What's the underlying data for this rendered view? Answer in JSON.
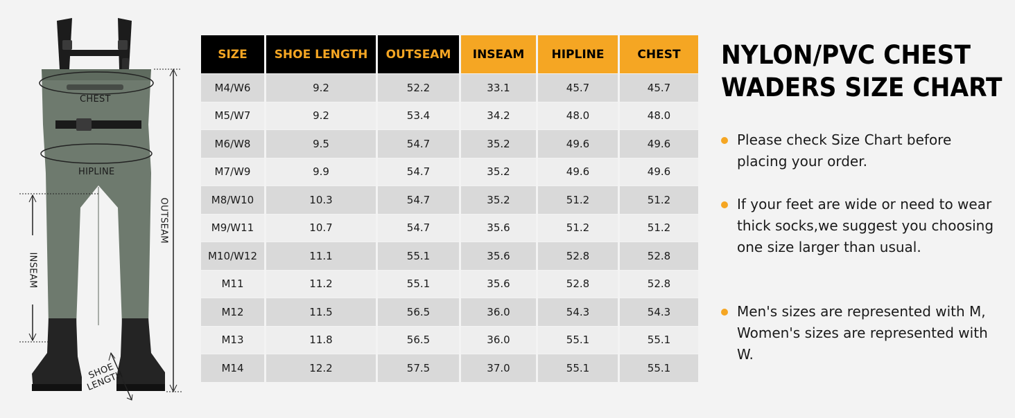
{
  "illustration": {
    "labels": {
      "chest": "CHEST",
      "hipline": "HIPLINE",
      "outseam": "OUTSEAM",
      "inseam": "INSEAM",
      "shoe_length_line1": "SHOE",
      "shoe_length_line2": "LENGTH"
    },
    "colors": {
      "waders": "#6e7a6e",
      "boots": "#242424"
    }
  },
  "table": {
    "headers": {
      "size": "SIZE",
      "shoe_length": "SHOE LENGTH",
      "outseam": "OUTSEAM",
      "inseam": "INSEAM",
      "hipline": "HIPLINE",
      "chest": "CHEST"
    },
    "rows": [
      {
        "size": "M4/W6",
        "shoe_length": "9.2",
        "outseam": "52.2",
        "inseam": "33.1",
        "hipline": "45.7",
        "chest": "45.7"
      },
      {
        "size": "M5/W7",
        "shoe_length": "9.2",
        "outseam": "53.4",
        "inseam": "34.2",
        "hipline": "48.0",
        "chest": "48.0"
      },
      {
        "size": "M6/W8",
        "shoe_length": "9.5",
        "outseam": "54.7",
        "inseam": "35.2",
        "hipline": "49.6",
        "chest": "49.6"
      },
      {
        "size": "M7/W9",
        "shoe_length": "9.9",
        "outseam": "54.7",
        "inseam": "35.2",
        "hipline": "49.6",
        "chest": "49.6"
      },
      {
        "size": "M8/W10",
        "shoe_length": "10.3",
        "outseam": "54.7",
        "inseam": "35.2",
        "hipline": "51.2",
        "chest": "51.2"
      },
      {
        "size": "M9/W11",
        "shoe_length": "10.7",
        "outseam": "54.7",
        "inseam": "35.6",
        "hipline": "51.2",
        "chest": "51.2"
      },
      {
        "size": "M10/W12",
        "shoe_length": "11.1",
        "outseam": "55.1",
        "inseam": "35.6",
        "hipline": "52.8",
        "chest": "52.8"
      },
      {
        "size": "M11",
        "shoe_length": "11.2",
        "outseam": "55.1",
        "inseam": "35.6",
        "hipline": "52.8",
        "chest": "52.8"
      },
      {
        "size": "M12",
        "shoe_length": "11.5",
        "outseam": "56.5",
        "inseam": "36.0",
        "hipline": "54.3",
        "chest": "54.3"
      },
      {
        "size": "M13",
        "shoe_length": "11.8",
        "outseam": "56.5",
        "inseam": "36.0",
        "hipline": "55.1",
        "chest": "55.1"
      },
      {
        "size": "M14",
        "shoe_length": "12.2",
        "outseam": "57.5",
        "inseam": "37.0",
        "hipline": "55.1",
        "chest": "55.1"
      }
    ],
    "colors": {
      "header_bg": "#000000",
      "header_text": "#f5a623",
      "highlight_bg": "#f5a623",
      "highlight_text": "#000000",
      "row_dark": "#d9d9d9",
      "row_light": "#eeeeee"
    }
  },
  "info": {
    "title_line1": "NYLON/PVC CHEST",
    "title_line2": "WADERS SIZE CHART",
    "bullets": [
      "Please check Size Chart before placing your order.",
      "If your feet are wide or need to wear thick socks,we suggest you choosing one size larger than usual.",
      "Men's sizes are represented with M, Women's sizes are represented with W."
    ],
    "accent_color": "#f5a623"
  }
}
